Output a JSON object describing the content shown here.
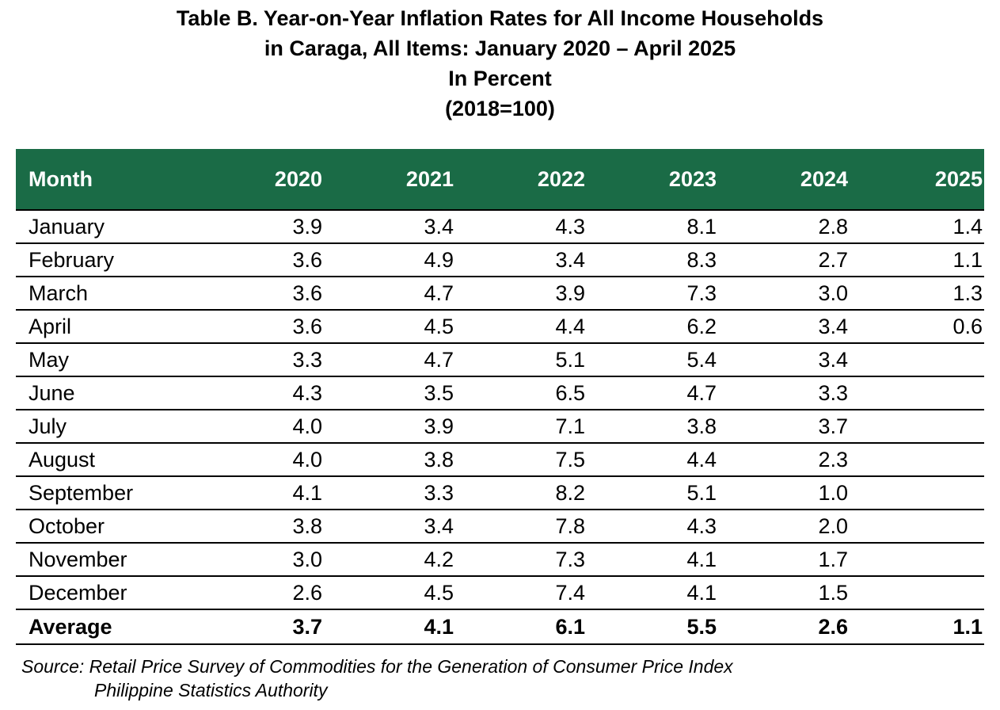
{
  "title": {
    "line1": "Table B. Year-on-Year Inflation Rates for All Income Households",
    "line2": "in Caraga, All Items: January 2020 – April 2025",
    "line3": "In Percent",
    "line4": "(2018=100)"
  },
  "table": {
    "headers": [
      "Month",
      "2020",
      "2021",
      "2022",
      "2023",
      "2024",
      "2025"
    ],
    "rows": [
      [
        "January",
        "3.9",
        "3.4",
        "4.3",
        "8.1",
        "2.8",
        "1.4"
      ],
      [
        "February",
        "3.6",
        "4.9",
        "3.4",
        "8.3",
        "2.7",
        "1.1"
      ],
      [
        "March",
        "3.6",
        "4.7",
        "3.9",
        "7.3",
        "3.0",
        "1.3"
      ],
      [
        "April",
        "3.6",
        "4.5",
        "4.4",
        "6.2",
        "3.4",
        "0.6"
      ],
      [
        "May",
        "3.3",
        "4.7",
        "5.1",
        "5.4",
        "3.4",
        ""
      ],
      [
        "June",
        "4.3",
        "3.5",
        "6.5",
        "4.7",
        "3.3",
        ""
      ],
      [
        "July",
        "4.0",
        "3.9",
        "7.1",
        "3.8",
        "3.7",
        ""
      ],
      [
        "August",
        "4.0",
        "3.8",
        "7.5",
        "4.4",
        "2.3",
        ""
      ],
      [
        "September",
        "4.1",
        "3.3",
        "8.2",
        "5.1",
        "1.0",
        ""
      ],
      [
        "October",
        "3.8",
        "3.4",
        "7.8",
        "4.3",
        "2.0",
        ""
      ],
      [
        "November",
        "3.0",
        "4.2",
        "7.3",
        "4.1",
        "1.7",
        ""
      ],
      [
        "December",
        "2.6",
        "4.5",
        "7.4",
        "4.1",
        "1.5",
        ""
      ]
    ],
    "average": [
      "Average",
      "3.7",
      "4.1",
      "6.1",
      "5.5",
      "2.6",
      "1.1"
    ]
  },
  "source": {
    "line1": "Source: Retail Price Survey of Commodities for the Generation of Consumer Price Index",
    "line2": "Philippine Statistics Authority"
  },
  "colors": {
    "header_bg": "#1a6b46",
    "header_text": "#ffffff"
  }
}
